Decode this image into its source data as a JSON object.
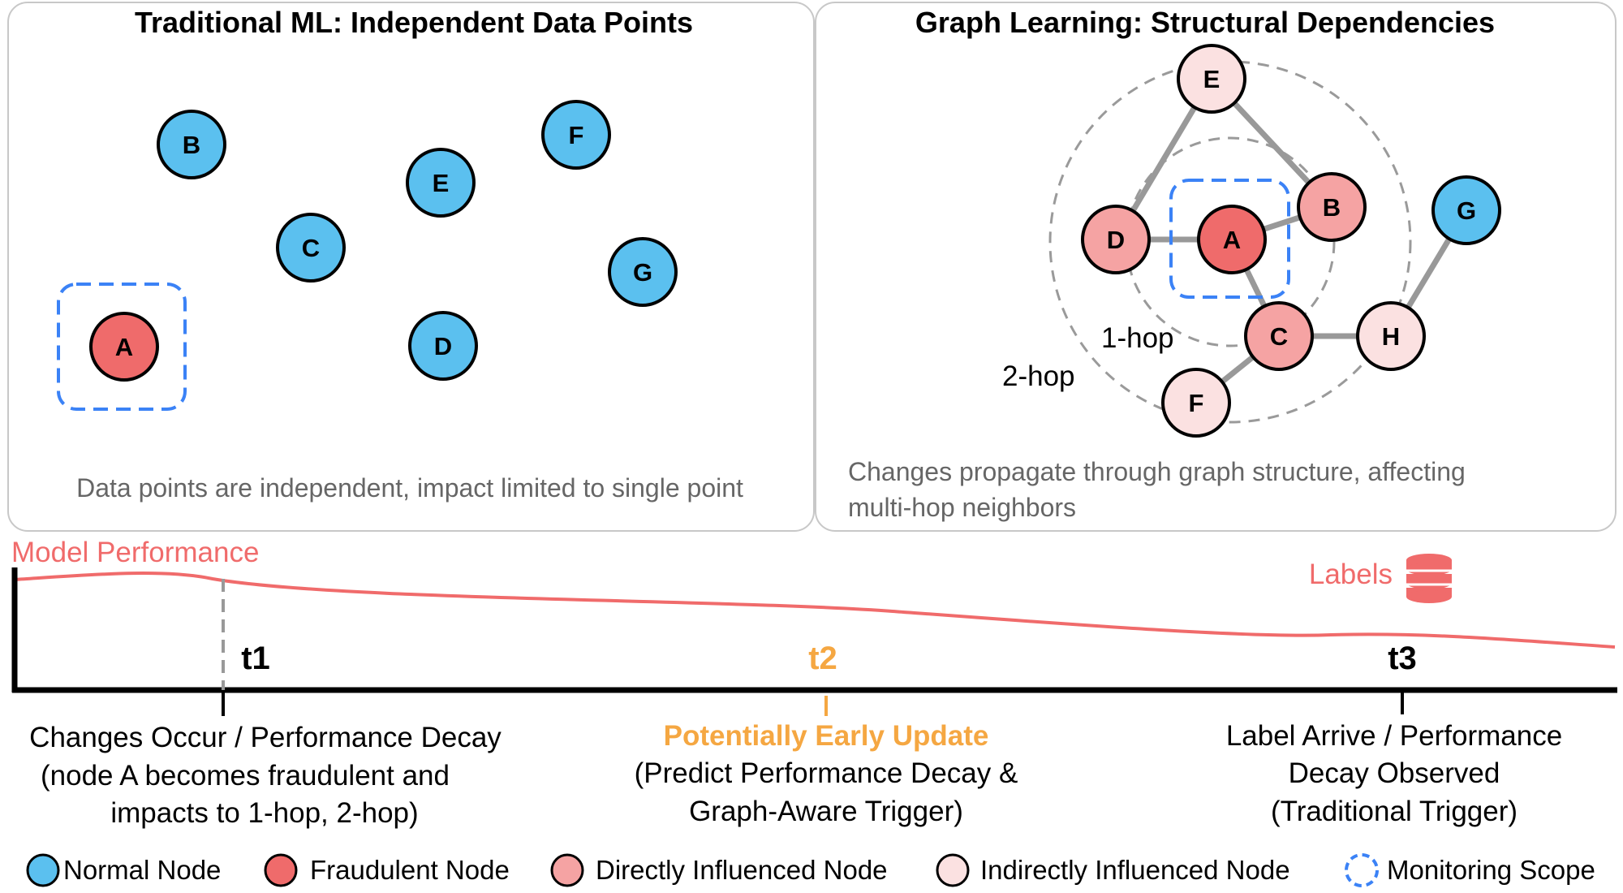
{
  "panels": {
    "left": {
      "title": "Traditional ML: Independent Data Points",
      "caption": "Data points are independent, impact limited to single point",
      "nodes": [
        {
          "id": "A",
          "type": "fraudulent",
          "monitored": true
        },
        {
          "id": "B",
          "type": "normal"
        },
        {
          "id": "C",
          "type": "normal"
        },
        {
          "id": "D",
          "type": "normal"
        },
        {
          "id": "E",
          "type": "normal"
        },
        {
          "id": "F",
          "type": "normal"
        },
        {
          "id": "G",
          "type": "normal"
        }
      ]
    },
    "right": {
      "title": "Graph Learning: Structural Dependencies",
      "caption_lines": [
        "Changes propagate through graph structure, affecting",
        "multi-hop neighbors"
      ],
      "hop_labels": {
        "one": "1-hop",
        "two": "2-hop"
      },
      "nodes": [
        {
          "id": "A",
          "type": "fraudulent",
          "monitored": true
        },
        {
          "id": "B",
          "type": "direct"
        },
        {
          "id": "C",
          "type": "direct"
        },
        {
          "id": "D",
          "type": "direct"
        },
        {
          "id": "E",
          "type": "indirect"
        },
        {
          "id": "F",
          "type": "indirect"
        },
        {
          "id": "G",
          "type": "normal"
        },
        {
          "id": "H",
          "type": "indirect"
        }
      ],
      "edges": [
        [
          "D",
          "A"
        ],
        [
          "A",
          "B"
        ],
        [
          "A",
          "C"
        ],
        [
          "D",
          "E"
        ],
        [
          "E",
          "B"
        ],
        [
          "C",
          "F"
        ],
        [
          "C",
          "H"
        ],
        [
          "H",
          "G"
        ]
      ]
    }
  },
  "timeline": {
    "performance_label": "Model Performance",
    "labels_label": "Labels",
    "database-icon": "database-icon",
    "events": [
      {
        "tick": "t1",
        "color": "#000000",
        "lines": [
          "Changes Occur / Performance Decay",
          "(node A becomes fraudulent and",
          "impacts to 1-hop, 2-hop)"
        ]
      },
      {
        "tick": "t2",
        "color": "#f5a742",
        "lines": [
          "Potentially Early Update",
          "(Predict Performance Decay &",
          "Graph-Aware Trigger)"
        ]
      },
      {
        "tick": "t3",
        "color": "#000000",
        "lines": [
          "Label Arrive / Performance",
          "Decay Observed",
          "(Traditional Trigger)"
        ]
      }
    ]
  },
  "legend": [
    {
      "label": "Normal Node",
      "kind": "normal"
    },
    {
      "label": "Fraudulent Node",
      "kind": "fraudulent"
    },
    {
      "label": "Directly Influenced Node",
      "kind": "direct"
    },
    {
      "label": "Indirectly Influenced Node",
      "kind": "indirect"
    },
    {
      "label": "Monitoring Scope",
      "kind": "scope"
    }
  ],
  "colors": {
    "normal": "#5bc0ef",
    "fraudulent": "#ef6b6b",
    "direct": "#f5a3a3",
    "indirect": "#fbe1e1",
    "scope": "#3b82f6",
    "performance": "#f06b6b",
    "t2": "#f5a742"
  }
}
